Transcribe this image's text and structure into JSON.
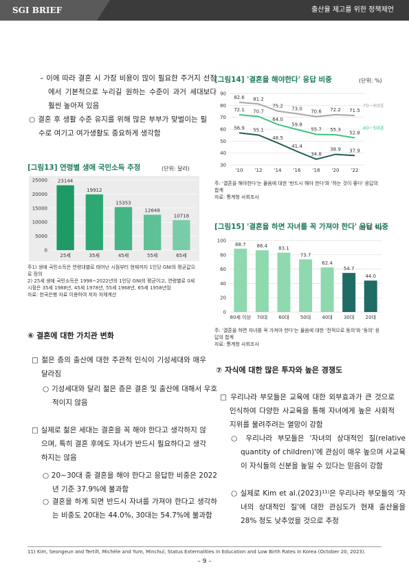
{
  "header": {
    "brand": "SGI BRIEF",
    "title": "출산율 제고를 위한 정책제언"
  },
  "left_column": [
    "– 이에 따라 결혼 시 가장 비용이 많이 필요한 주거지 선정에서 기본적으로 누리길 원하는 수준이 과거 세대보다 훨씬 높아져 있음",
    "○ 결혼 후 생활 수준 유지를 위해 많은 부부가 맞벌이는 필수로 여기고 여가생활도 중요하게 생각함"
  ],
  "section6": {
    "heading": "⑥ 결혼에 대한 가치관 변화",
    "items": [
      "□ 젊은 층의 출산에 대한 주관적 인식이 기성세대와 매우 달라짐",
      "○ 기성세대와 달리 젊은 층은 결혼 및 출산에 대해서 우호적이지 않음",
      "□ 실제로 젊은 세대는 결혼을 꼭 해야 한다고 생각하지 않으며, 특히 결혼 후에도 자녀가 반드시 필요하다고 생각하지는 않음",
      "○ 20~30대 중 결혼을 해야 한다고 응답한 비중은 2022년 기준 37.9%에 불과함",
      "○ 결혼을 하게 되면 반드시 자녀를 가져야 한다고 생각하는 비중도 20대는 44.0%, 30대는 54.7%에 불과함"
    ]
  },
  "section7": {
    "heading": "⑦ 자식에 대한 많은 투자와 높은 경쟁도",
    "items": [
      "□ 우리나라 부모들은 교육에 대한 외부효과가 큰 것으로 인식하여 다양한 사교육을 통해 자녀에게 높은 사회적 지위를 물려주려는 열망이 강함",
      "○ 우리나라 부모들은 '자녀의 상대적인 질(relative quantity of children)'에 관심이 매우 높으며 사교육이 자식들의 신분을 높일 수 있다는 믿음이 강함",
      "○ 실제로 Kim et al.(2023)¹¹⁾은 우리나라 부모들의 '자녀의 상대적인 질'에 대한 관심도가 현재 출산율을 28% 정도 낮추었을 것으로 추정"
    ]
  },
  "footnote": "11) Kim, Seongeun and Tertilt, Michèle and Yum, Minchul, Status Externalities in Education and Low Birth Rates in Korea (October 20, 2023).",
  "page_number": "– 9 –",
  "chart_data": [
    {
      "type": "bar",
      "title": "[그림13] 연령별 생애 국민소득 추정",
      "unit": "(단위: 달러)",
      "categories": [
        "25세",
        "35세",
        "45세",
        "55세",
        "65세"
      ],
      "values": [
        23144,
        19912,
        15353,
        12648,
        10718
      ],
      "colors": [
        "#1e9a64",
        "#2da873",
        "#44b584",
        "#5fc196",
        "#79cca7"
      ],
      "ylim": [
        0,
        25000
      ],
      "yticks": [
        0,
        5000,
        10000,
        15000,
        20000,
        25000
      ],
      "grid": true,
      "notes": [
        "주1) 생애 국민소득은 연령대별로 태어난 시점부터 현재까지 1인당 GNI의 평균값으로 정의",
        "2) 25세 생애 국민소득은 1998~2022년의 1인당 GNI의 평균이고, 연령별로 0세 시점은 35세 1988년, 45세 1978년, 55세 1968년, 65세 1958년임",
        "자료: 한국은행 자료 이용하여 저자 자체계산"
      ]
    },
    {
      "type": "line",
      "title": "[그림14] '결혼을 해야한다' 응답 비중",
      "unit": "(단위: %)",
      "categories": [
        "'10",
        "'12",
        "'14",
        "'16",
        "'18",
        "'20",
        "'22"
      ],
      "series": [
        {
          "name": "70~80대",
          "color": "#a6a6a6",
          "values": [
            82.6,
            81.2,
            75.2,
            73.0,
            70.6,
            72.2,
            71.5
          ],
          "value_labels": [
            "82.6",
            "81.2",
            "75.2",
            "73.0",
            "70.6",
            "72.2",
            "71.5"
          ]
        },
        {
          "name": "40~50대",
          "color": "#3cc57a",
          "values": [
            72.1,
            70.7,
            64.0,
            59.8,
            55.7,
            55.3,
            52.8
          ],
          "value_labels": [
            "72.1",
            "70.7",
            "64.0",
            "59.8",
            "55.7",
            "55.3",
            "52.8"
          ]
        },
        {
          "color": "#1f5a56",
          "values": [
            56.9,
            55.1,
            48.5,
            41.4,
            34.8,
            38.9,
            37.9
          ]
        }
      ],
      "ylim": [
        30,
        90
      ],
      "yticks": [
        30,
        40,
        50,
        60,
        70,
        80,
        90
      ],
      "grid": true,
      "notes": [
        "주: '결혼을 해야한다'는 물음에 대한 '반드시 해야 한다'와 '하는 것이 좋다' 응답의 합계",
        "자료: 통계청 사회조사"
      ]
    },
    {
      "type": "bar",
      "title": "[그림15] '결혼을 하면 자녀를 꼭 가져야 한다' 응답 비중",
      "unit": "(단위: %)",
      "categories": [
        "80세 이상",
        "70대",
        "60대",
        "50대",
        "40대",
        "30대",
        "20대"
      ],
      "values": [
        88.7,
        86.4,
        83.1,
        73.7,
        62.4,
        54.7,
        44.0
      ],
      "value_labels": [
        "88.7",
        "86.4",
        "83.1",
        "73.7",
        "62.4",
        "54.7",
        "44.0"
      ],
      "colors": [
        "#8fd9ae",
        "#8fd9ae",
        "#8fd9ae",
        "#8fd9ae",
        "#8fd9ae",
        "#1f6b65",
        "#1f6b65"
      ],
      "ylim": [
        0,
        100
      ],
      "yticks": [
        0,
        20,
        40,
        60,
        80,
        100
      ],
      "grid": true,
      "notes": [
        "주: '결혼을 하면 자녀를 꼭 가져야 한다'는 물음에 대한 '전적으로 동의'와 '동의' 응답의 합계",
        "자료: 통계청 사회조사"
      ]
    }
  ]
}
